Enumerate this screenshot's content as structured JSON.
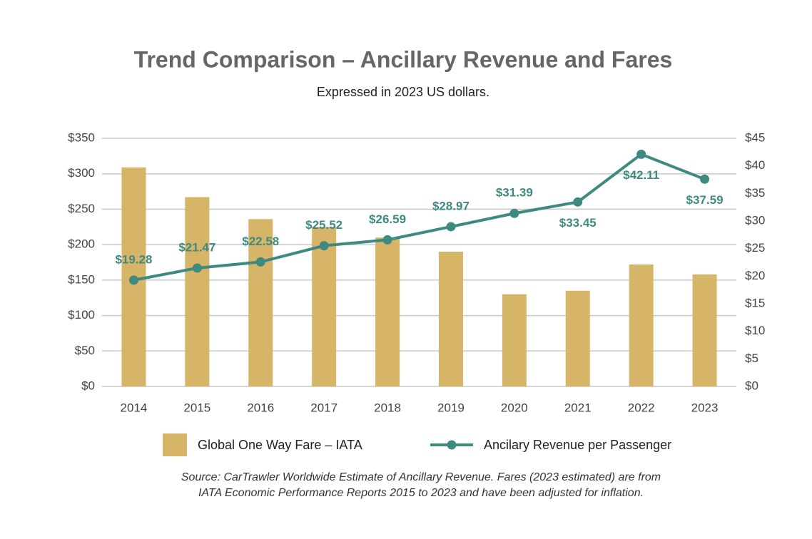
{
  "chart_data": {
    "type": "bar_line",
    "title": "Trend Comparison – Ancillary Revenue and Fares",
    "subtitle": "Expressed in 2023 US dollars.",
    "categories": [
      "2014",
      "2015",
      "2016",
      "2017",
      "2018",
      "2019",
      "2020",
      "2021",
      "2022",
      "2023"
    ],
    "series": [
      {
        "name": "Global One Way Fare – IATA",
        "type": "bar",
        "color": "#d6b468",
        "values": [
          309,
          267,
          236,
          225,
          210,
          190,
          130,
          135,
          172,
          158
        ]
      },
      {
        "name": "Ancilary Revenue per Passenger",
        "type": "line",
        "axis": "y2",
        "color": "#3f8a80",
        "values": [
          19.28,
          21.47,
          22.58,
          25.52,
          26.59,
          28.97,
          31.39,
          33.45,
          42.11,
          37.59
        ],
        "value_labels": [
          "$19.28",
          "$21.47",
          "$22.58",
          "$25.52",
          "$26.59",
          "$28.97",
          "$31.39",
          "$33.45",
          "$42.11",
          "$37.59"
        ]
      }
    ],
    "ylim": [
      0,
      350
    ],
    "yticks": [
      {
        "value": 0,
        "label": "$0"
      },
      {
        "value": 50,
        "label": "$50"
      },
      {
        "value": 100,
        "label": "$100"
      },
      {
        "value": 150,
        "label": "$150"
      },
      {
        "value": 200,
        "label": "$200"
      },
      {
        "value": 250,
        "label": "$250"
      },
      {
        "value": 300,
        "label": "$300"
      },
      {
        "value": 350,
        "label": "$350"
      }
    ],
    "y2lim": [
      0,
      45
    ],
    "y2ticks": [
      {
        "value": 0,
        "label": "$0"
      },
      {
        "value": 5,
        "label": "$5"
      },
      {
        "value": 10,
        "label": "$10"
      },
      {
        "value": 15,
        "label": "$15"
      },
      {
        "value": 20,
        "label": "$20"
      },
      {
        "value": 25,
        "label": "$25"
      },
      {
        "value": 30,
        "label": "$30"
      },
      {
        "value": 35,
        "label": "$35"
      },
      {
        "value": 40,
        "label": "$40"
      },
      {
        "value": 45,
        "label": "$45"
      }
    ],
    "grid": true,
    "legend": "bottom",
    "footnote": [
      "Source: CarTrawler Worldwide Estimate of Ancillary Revenue. Fares (2023 estimated) are from",
      "IATA Economic Performance Reports 2015 to 2023 and have been adjusted for inflation."
    ]
  }
}
